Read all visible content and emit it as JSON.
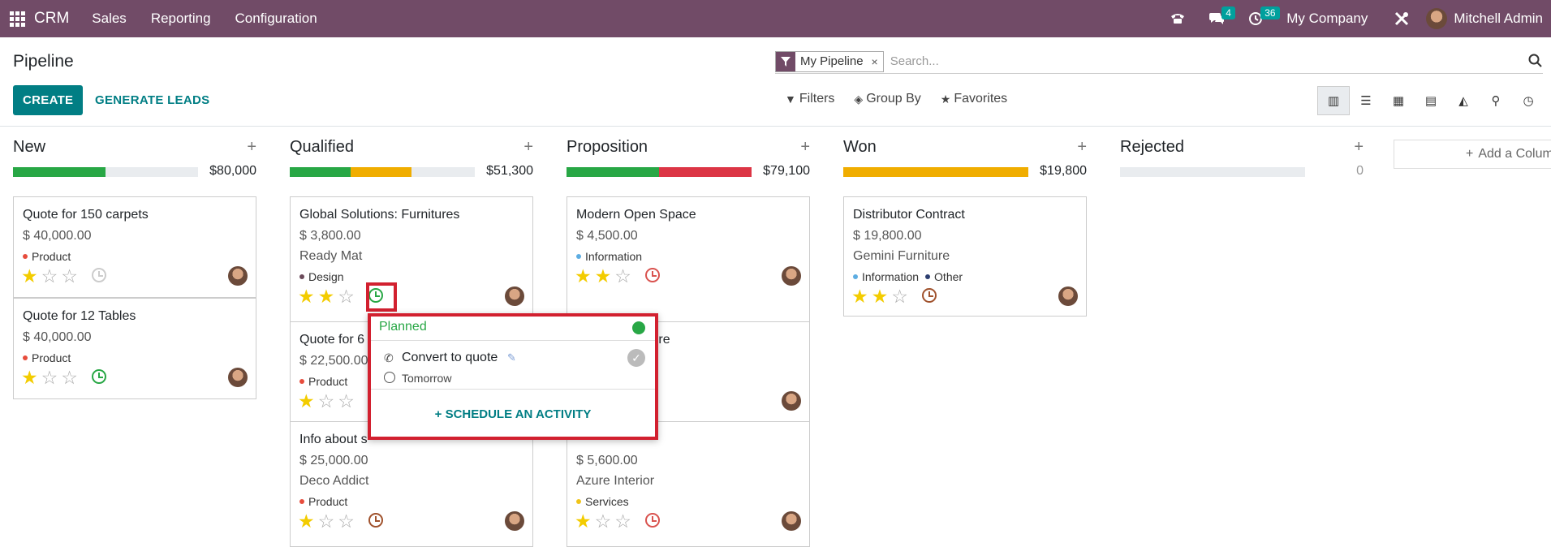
{
  "topbar": {
    "brand": "CRM",
    "menus": [
      "Sales",
      "Reporting",
      "Configuration"
    ],
    "chat_count": "4",
    "activity_count": "36",
    "company": "My Company",
    "user": "Mitchell Admin"
  },
  "control_panel": {
    "title": "Pipeline",
    "facet": "My Pipeline",
    "facet_close": "×",
    "search_placeholder": "Search...",
    "create_label": "CREATE",
    "generate_label": "GENERATE LEADS",
    "filters_label": "Filters",
    "groupby_label": "Group By",
    "favorites_label": "Favorites"
  },
  "columns": [
    {
      "name": "New",
      "total": "$80,000",
      "progress": [
        {
          "color": "#28a745",
          "fraction": 0.5
        }
      ],
      "cards": [
        {
          "name": "Quote for 150 carpets",
          "amount": "$ 40,000.00",
          "tags": [
            {
              "label": "Product",
              "color": "#e74c3c"
            }
          ],
          "stars": 1,
          "activity": "grey"
        },
        {
          "name": "Quote for 12 Tables",
          "amount": "$ 40,000.00",
          "tags": [
            {
              "label": "Product",
              "color": "#e74c3c"
            }
          ],
          "stars": 1,
          "activity": "green"
        }
      ]
    },
    {
      "name": "Qualified",
      "total": "$51,300",
      "progress": [
        {
          "color": "#28a745",
          "fraction": 0.33
        },
        {
          "color": "#f0ad00",
          "fraction": 0.33
        }
      ],
      "cards": [
        {
          "name": "Global Solutions: Furnitures",
          "amount": "$ 3,800.00",
          "partner": "Ready Mat",
          "tags": [
            {
              "label": "Design",
              "color": "#6b4a5a"
            }
          ],
          "stars": 2,
          "activity": "green"
        },
        {
          "name": "Quote for 6",
          "amount": "$ 22,500.00",
          "tags": [
            {
              "label": "Product",
              "color": "#e74c3c"
            }
          ],
          "stars": 1,
          "activity": "none"
        },
        {
          "name": "Info about s",
          "amount": "$ 25,000.00",
          "partner": "Deco Addict",
          "tags": [
            {
              "label": "Product",
              "color": "#e74c3c"
            }
          ],
          "stars": 1,
          "activity": "orange"
        }
      ]
    },
    {
      "name": "Proposition",
      "total": "$79,100",
      "progress": [
        {
          "color": "#28a745",
          "fraction": 0.5
        },
        {
          "color": "#dc3545",
          "fraction": 0.5
        }
      ],
      "cards": [
        {
          "name": "Modern Open Space",
          "amount": "$ 4,500.00",
          "tags": [
            {
              "label": "Information",
              "color": "#5dade2"
            }
          ],
          "stars": 2,
          "activity": "red"
        },
        {
          "name": "and Architecture",
          "amount": "",
          "tags": [],
          "stars": 0,
          "activity": "none"
        },
        {
          "name": "",
          "amount": "$ 5,600.00",
          "partner": "Azure Interior",
          "tags": [
            {
              "label": "Services",
              "color": "#f0c419"
            }
          ],
          "stars": 1,
          "activity": "red"
        }
      ]
    },
    {
      "name": "Won",
      "total": "$19,800",
      "progress": [
        {
          "color": "#f0ad00",
          "fraction": 1.0
        }
      ],
      "cards": [
        {
          "name": "Distributor Contract",
          "amount": "$ 19,800.00",
          "partner": "Gemini Furniture",
          "tags": [
            {
              "label": "Information",
              "color": "#5dade2"
            },
            {
              "label": "Other",
              "color": "#2c3e70"
            }
          ],
          "stars": 2,
          "activity": "orange"
        }
      ]
    },
    {
      "name": "Rejected",
      "total": "0",
      "progress": [],
      "cards": []
    }
  ],
  "add_column_label": "Add a Column",
  "popover": {
    "header": "Planned",
    "activity_title": "Convert to quote",
    "activity_when": "Tomorrow",
    "schedule_label": "SCHEDULE AN ACTIVITY"
  },
  "colors": {
    "navbar": "#714b67",
    "primary": "#017e84",
    "highlight": "#d2202f"
  }
}
